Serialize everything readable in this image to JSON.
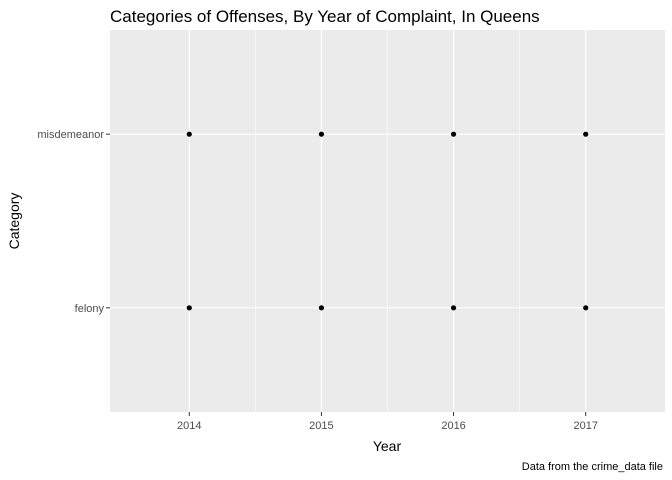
{
  "chart_data": {
    "type": "scatter",
    "title": "Categories of Offenses, By Year of Complaint, In Queens",
    "xlabel": "Year",
    "ylabel": "Category",
    "caption": "Data from the crime_data file",
    "x_ticks": [
      2014,
      2015,
      2016,
      2017
    ],
    "y_categories": [
      "felony",
      "misdemeanor"
    ],
    "xlim": [
      2013.4,
      2017.6
    ],
    "grid": true,
    "legend": "none",
    "panel_background": "#ebebeb",
    "grid_color": "#ffffff",
    "point_color": "#000000",
    "points": [
      {
        "x": 2014,
        "y": "misdemeanor"
      },
      {
        "x": 2015,
        "y": "misdemeanor"
      },
      {
        "x": 2016,
        "y": "misdemeanor"
      },
      {
        "x": 2017,
        "y": "misdemeanor"
      },
      {
        "x": 2014,
        "y": "felony"
      },
      {
        "x": 2015,
        "y": "felony"
      },
      {
        "x": 2016,
        "y": "felony"
      },
      {
        "x": 2017,
        "y": "felony"
      }
    ]
  }
}
